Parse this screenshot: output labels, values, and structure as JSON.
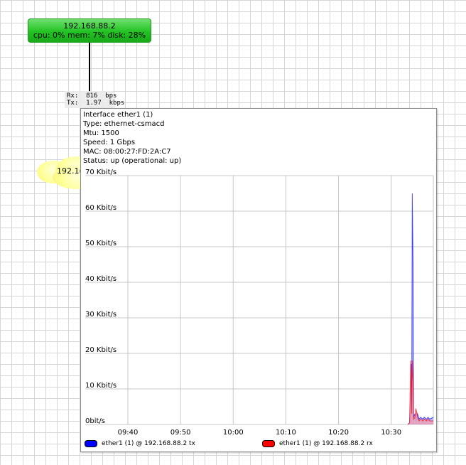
{
  "device": {
    "ip": "192.168.88.2",
    "stats": "cpu: 0% mem: 7% disk: 28%",
    "color": "#22c322"
  },
  "link": {
    "rx": "Rx:  816  bps",
    "tx": "Tx:  1.97  kbps"
  },
  "cloud": {
    "visible_text": "192.1("
  },
  "interface": {
    "title": "Interface ether1 (1)",
    "type": "Type: ethernet-csmacd",
    "mtu": "Mtu: 1500",
    "speed": "Speed: 1 Gbps",
    "mac": "MAC: 08:00:27:FD:2A:C7",
    "status": "Status: up (operational: up)"
  },
  "chart_data": {
    "type": "area",
    "title": "",
    "xlabel": "",
    "ylabel": "",
    "ylim": [
      0,
      70
    ],
    "y_ticks": [
      {
        "value": 0,
        "label": "0bit/s"
      },
      {
        "value": 10,
        "label": "10 Kbit/s"
      },
      {
        "value": 20,
        "label": "20 Kbit/s"
      },
      {
        "value": 30,
        "label": "30 Kbit/s"
      },
      {
        "value": 40,
        "label": "40 Kbit/s"
      },
      {
        "value": 50,
        "label": "50 Kbit/s"
      },
      {
        "value": 60,
        "label": "60 Kbit/s"
      },
      {
        "value": 70,
        "label": "70 Kbit/s"
      }
    ],
    "x_ticks": [
      "09:40",
      "09:50",
      "10:00",
      "10:10",
      "10:20",
      "10:30"
    ],
    "x_range_minutes": [
      0,
      58
    ],
    "grid": true,
    "legend_position": "bottom",
    "series": [
      {
        "name": "ether1 (1) @ 192.168.88.2 tx",
        "color": "#0000ff",
        "fill": "#b0b0f4",
        "points": [
          [
            53.2,
            0
          ],
          [
            53.5,
            0.5
          ],
          [
            53.7,
            11
          ],
          [
            53.8,
            17
          ],
          [
            53.9,
            4
          ],
          [
            54.0,
            65
          ],
          [
            54.15,
            45
          ],
          [
            54.25,
            2
          ],
          [
            54.5,
            3
          ],
          [
            54.7,
            1
          ],
          [
            55.0,
            3
          ],
          [
            55.3,
            1.5
          ],
          [
            55.6,
            2
          ],
          [
            56.0,
            1.5
          ],
          [
            56.3,
            2
          ],
          [
            56.7,
            1.5
          ],
          [
            57.0,
            2
          ],
          [
            57.3,
            1.5
          ],
          [
            58.0,
            2
          ]
        ]
      },
      {
        "name": "ether1 (1) @ 192.168.88.2 rx",
        "color": "#ff0000",
        "fill": "#e8a0ba",
        "points": [
          [
            53.2,
            0
          ],
          [
            53.5,
            0.5
          ],
          [
            53.7,
            18
          ],
          [
            53.8,
            14
          ],
          [
            53.9,
            3
          ],
          [
            54.0,
            18
          ],
          [
            54.15,
            12
          ],
          [
            54.25,
            1.5
          ],
          [
            54.5,
            2
          ],
          [
            54.7,
            4.5
          ],
          [
            55.0,
            2
          ],
          [
            55.3,
            1
          ],
          [
            55.6,
            1.5
          ],
          [
            56.0,
            1
          ],
          [
            56.3,
            1.5
          ],
          [
            56.7,
            1
          ],
          [
            57.0,
            1.5
          ],
          [
            57.3,
            1
          ],
          [
            58.0,
            1
          ]
        ]
      }
    ]
  },
  "legend": {
    "tx_label": "ether1 (1) @ 192.168.88.2 tx",
    "rx_label": "ether1 (1) @ 192.168.88.2 rx",
    "tx_color": "#0000ff",
    "rx_color": "#ff0000"
  }
}
